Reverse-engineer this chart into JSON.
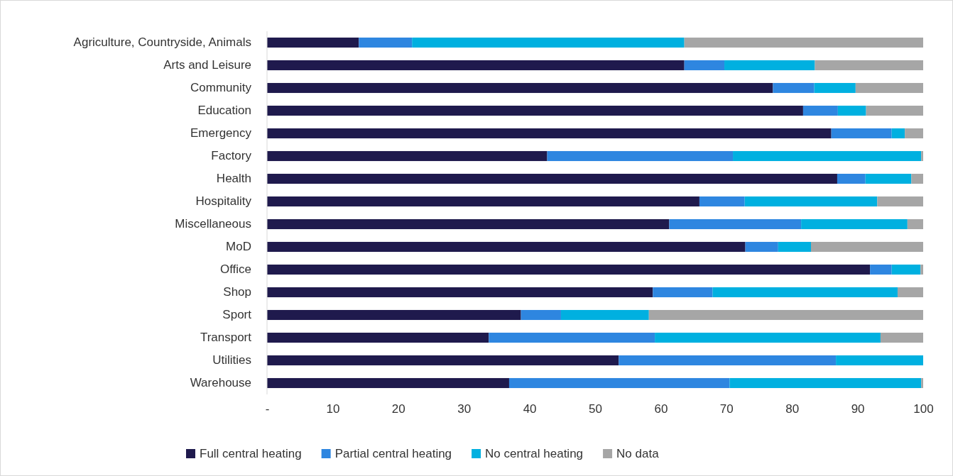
{
  "chart_data": {
    "type": "bar",
    "orientation": "horizontal",
    "stacked": true,
    "categories": [
      "Agriculture, Countryside, Animals",
      "Arts and Leisure",
      "Community",
      "Education",
      "Emergency",
      "Factory",
      "Health",
      "Hospitality",
      "Miscellaneous",
      "MoD",
      "Office",
      "Shop",
      "Sport",
      "Transport",
      "Utilities",
      "Warehouse"
    ],
    "series": [
      {
        "name": "Full central heating",
        "color": "#1f1a4d",
        "values": [
          14.0,
          63.6,
          77.1,
          81.7,
          86.0,
          42.7,
          86.9,
          65.9,
          61.3,
          72.9,
          91.9,
          58.8,
          38.7,
          33.8,
          53.6,
          36.9
        ]
      },
      {
        "name": "Partial central heating",
        "color": "#2e86e0",
        "values": [
          8.1,
          6.1,
          6.3,
          5.3,
          9.2,
          28.3,
          4.3,
          6.9,
          20.1,
          5.0,
          3.3,
          9.1,
          6.1,
          25.3,
          33.1,
          33.6
        ]
      },
      {
        "name": "No central heating",
        "color": "#00b0e0",
        "values": [
          41.5,
          13.8,
          6.3,
          4.3,
          2.0,
          28.7,
          7.0,
          20.2,
          16.2,
          5.0,
          4.4,
          28.2,
          13.4,
          34.4,
          13.3,
          29.2
        ]
      },
      {
        "name": "No data",
        "color": "#a6a6a6",
        "values": [
          36.4,
          16.5,
          10.3,
          8.7,
          2.8,
          0.3,
          1.8,
          7.0,
          2.4,
          17.1,
          0.4,
          3.9,
          41.8,
          6.5,
          0,
          0.3
        ]
      }
    ],
    "xlim": [
      0,
      100
    ],
    "xticks": [
      {
        "value": 0,
        "label": "-"
      },
      10,
      20,
      30,
      40,
      50,
      60,
      70,
      80,
      90,
      100
    ],
    "grid": false,
    "legend": "bottom"
  }
}
